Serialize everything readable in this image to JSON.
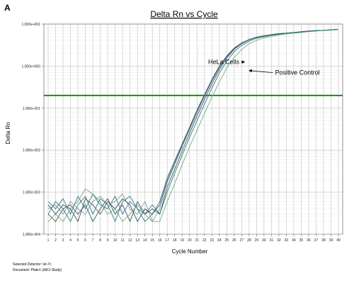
{
  "panel_label": "A",
  "footer": {
    "line1": "Selected Detector: let-7c",
    "line2": "Document: Plate1 (ddCt Study)"
  },
  "colors": {
    "threshold": "#1a9a1a",
    "grid_major": "#bdbdbd",
    "grid_minor": "#e4e4e4",
    "series_dark": "#3e5560",
    "series_teal": "#2f7a86",
    "series_green": "#6fae6f",
    "series_gray": "#8a97a0"
  },
  "chart_data": {
    "type": "line",
    "title": "Delta Rn vs Cycle",
    "xlabel": "Cycle Number",
    "ylabel": "Delta Rn",
    "xlim": [
      1,
      40
    ],
    "ylim": [
      0.0001,
      10
    ],
    "yscale": "log",
    "grid": true,
    "x_ticks": [
      "1",
      "2",
      "3",
      "4",
      "5",
      "6",
      "7",
      "8",
      "9",
      "10",
      "11",
      "12",
      "13",
      "14",
      "15",
      "16",
      "17",
      "18",
      "19",
      "20",
      "21",
      "22",
      "23",
      "24",
      "25",
      "26",
      "27",
      "28",
      "29",
      "30",
      "31",
      "32",
      "33",
      "34",
      "35",
      "36",
      "37",
      "38",
      "39",
      "40"
    ],
    "y_ticks": [
      {
        "value": 10,
        "label": "1.000e+001"
      },
      {
        "value": 1,
        "label": "1.000e+000"
      },
      {
        "value": 0.1,
        "label": "1.000e-001"
      },
      {
        "value": 0.01,
        "label": "1.000e-002"
      },
      {
        "value": 0.001,
        "label": "1.000e-003"
      },
      {
        "value": 0.0001,
        "label": "1.000e-004"
      }
    ],
    "threshold": 0.2,
    "annotations": [
      {
        "text": "HeLa Cells",
        "x": 22.5,
        "y": 1.25,
        "arrow_to": [
          27.4,
          1.25
        ]
      },
      {
        "text": "Positive Control",
        "x": 31.5,
        "y": 0.7,
        "arrow_to": [
          28.0,
          0.78
        ]
      }
    ],
    "series": [
      {
        "color": "series_dark",
        "noise": {
          "x": [
            1,
            2,
            3,
            4,
            5,
            6,
            7,
            8,
            9,
            10,
            11,
            12,
            13,
            14,
            15
          ],
          "y": [
            0.0003,
            0.0002,
            0.0004,
            0.0005,
            0.0003,
            0.0005,
            0.0002,
            0.0004,
            0.0007,
            0.0003,
            0.0005,
            0.0002,
            0.0006,
            0.0003,
            0.0004
          ]
        },
        "x": [
          16,
          17,
          18,
          19,
          20,
          21,
          22,
          23,
          24,
          25,
          26,
          27,
          28,
          29,
          30,
          31,
          32,
          33,
          34,
          35,
          36,
          37,
          38,
          39,
          40
        ],
        "y": [
          0.0003,
          0.0013,
          0.0035,
          0.0095,
          0.025,
          0.065,
          0.16,
          0.38,
          0.82,
          1.55,
          2.5,
          3.4,
          4.2,
          4.8,
          5.2,
          5.6,
          5.9,
          6.1,
          6.3,
          6.6,
          6.8,
          7.0,
          7.1,
          7.3,
          7.5
        ]
      },
      {
        "color": "series_teal",
        "noise": {
          "x": [
            1,
            2,
            3,
            4,
            5,
            6,
            7,
            8,
            9,
            10,
            11,
            12,
            13,
            14,
            15
          ],
          "y": [
            0.0006,
            0.0004,
            0.0007,
            0.0003,
            0.0008,
            0.0004,
            0.0009,
            0.0005,
            0.0004,
            0.0008,
            0.0003,
            0.0006,
            0.0004,
            0.0002,
            0.0003
          ]
        },
        "x": [
          16,
          17,
          18,
          19,
          20,
          21,
          22,
          23,
          24,
          25,
          26,
          27,
          28,
          29,
          30,
          31,
          32,
          33,
          34,
          35,
          36,
          37,
          38,
          39,
          40
        ],
        "y": [
          0.0006,
          0.0022,
          0.0055,
          0.014,
          0.035,
          0.09,
          0.21,
          0.48,
          1.0,
          1.75,
          2.7,
          3.55,
          4.3,
          4.9,
          5.3,
          5.6,
          5.9,
          6.1,
          6.3,
          6.5,
          6.8,
          7.0,
          7.1,
          7.3,
          7.5
        ]
      },
      {
        "color": "series_green",
        "noise": {
          "x": [
            1,
            2,
            3,
            4,
            5,
            6,
            7,
            8,
            9,
            10,
            11,
            12,
            13,
            14,
            15
          ],
          "y": [
            0.0002,
            0.0003,
            0.0002,
            0.0004,
            0.0006,
            0.0012,
            0.0009,
            0.0006,
            0.0003,
            0.0004,
            0.0002,
            0.0003,
            0.0005,
            0.0003,
            0.0002
          ]
        },
        "x": [
          16,
          17,
          18,
          19,
          20,
          21,
          22,
          23,
          24,
          25,
          26,
          27,
          28,
          29,
          30,
          31,
          32,
          33,
          34,
          35,
          36,
          37,
          38,
          39,
          40
        ],
        "y": [
          0.0002,
          0.0006,
          0.0016,
          0.0045,
          0.012,
          0.03,
          0.075,
          0.18,
          0.42,
          0.9,
          1.6,
          2.5,
          3.4,
          4.1,
          4.7,
          5.1,
          5.5,
          5.8,
          6.1,
          6.3,
          6.6,
          6.8,
          7.0,
          7.2,
          7.4
        ]
      },
      {
        "color": "series_gray",
        "noise": {
          "x": [
            1,
            2,
            3,
            4,
            5,
            6,
            7,
            8,
            9,
            10,
            11,
            12,
            13,
            14,
            15
          ],
          "y": [
            0.0004,
            0.0005,
            0.0003,
            0.0006,
            0.0004,
            0.0003,
            0.0006,
            0.0008,
            0.0005,
            0.0006,
            0.0009,
            0.0004,
            0.0003,
            0.0006,
            0.0002
          ]
        },
        "x": [
          16,
          17,
          18,
          19,
          20,
          21,
          22,
          23,
          24,
          25,
          26,
          27,
          28,
          29,
          30,
          31,
          32,
          33,
          34,
          35,
          36,
          37,
          38,
          39,
          40
        ],
        "y": [
          0.0004,
          0.0017,
          0.0045,
          0.012,
          0.03,
          0.078,
          0.19,
          0.44,
          0.92,
          1.65,
          2.6,
          3.5,
          4.25,
          4.85,
          5.25,
          5.6,
          5.9,
          6.1,
          6.3,
          6.55,
          6.8,
          7.0,
          7.1,
          7.3,
          7.5
        ]
      },
      {
        "color": "series_dark",
        "noise": {
          "x": [
            1,
            2,
            3,
            4,
            5,
            6,
            7,
            8,
            9,
            10,
            11,
            12,
            13,
            14,
            15
          ],
          "y": [
            0.0005,
            0.0003,
            0.0005,
            0.0004,
            0.0002,
            0.0007,
            0.0005,
            0.0003,
            0.0006,
            0.0004,
            0.0007,
            0.0005,
            0.0002,
            0.0004,
            0.0003
          ]
        },
        "x": [
          16,
          17,
          18,
          19,
          20,
          21,
          22,
          23,
          24,
          25,
          26,
          27,
          28,
          29,
          30,
          31,
          32,
          33,
          34,
          35,
          36,
          37,
          38,
          39,
          40
        ],
        "y": [
          0.0005,
          0.0019,
          0.005,
          0.013,
          0.033,
          0.085,
          0.2,
          0.46,
          0.95,
          1.7,
          2.65,
          3.5,
          4.25,
          4.85,
          5.25,
          5.6,
          5.9,
          6.1,
          6.3,
          6.55,
          6.8,
          7.0,
          7.1,
          7.3,
          7.5
        ]
      },
      {
        "color": "series_teal",
        "noise": {
          "x": [
            1,
            2,
            3,
            4,
            5,
            6,
            7,
            8,
            9,
            10,
            11,
            12,
            13,
            14,
            15
          ],
          "y": [
            0.0003,
            0.0006,
            0.0004,
            0.0002,
            0.0005,
            0.0008,
            0.0003,
            0.0007,
            0.0005,
            0.0002,
            0.0006,
            0.0008,
            0.0004,
            0.0003,
            0.0005
          ]
        },
        "x": [
          16,
          17,
          18,
          19,
          20,
          21,
          22,
          23,
          24,
          25,
          26,
          27,
          28,
          29,
          30,
          31,
          32,
          33,
          34,
          35,
          36,
          37,
          38,
          39,
          40
        ],
        "y": [
          0.0003,
          0.001,
          0.0028,
          0.0075,
          0.02,
          0.05,
          0.125,
          0.3,
          0.68,
          1.3,
          2.2,
          3.1,
          3.9,
          4.6,
          5.0,
          5.4,
          5.7,
          6.0,
          6.2,
          6.45,
          6.7,
          6.9,
          7.1,
          7.3,
          7.5
        ]
      }
    ]
  }
}
